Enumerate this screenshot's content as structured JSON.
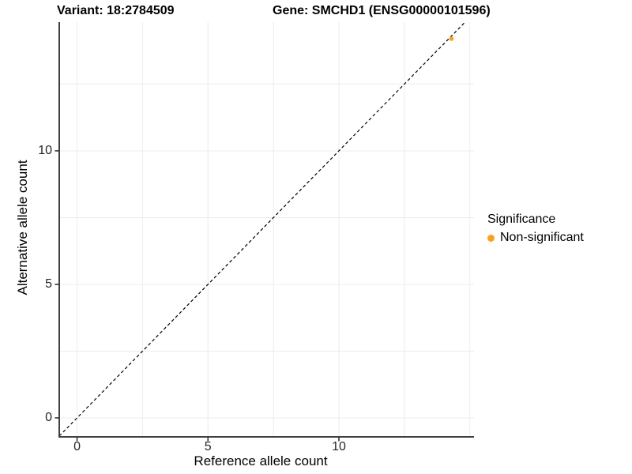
{
  "chart_data": {
    "type": "scatter",
    "title_left": "Variant: 18:2784509",
    "title_right": "Gene: SMCHD1 (ENSG00000101596)",
    "xlabel": "Reference allele count",
    "ylabel": "Alternative allele count",
    "x_ticks": [
      0,
      5,
      10
    ],
    "y_ticks": [
      0,
      5,
      10
    ],
    "xlim": [
      -0.68,
      15.16
    ],
    "ylim": [
      -0.71,
      14.82
    ],
    "grid_step": 2.5,
    "grid_on": true,
    "identity_line": {
      "slope": 1,
      "intercept": 0,
      "style": "dashed",
      "color": "#000000"
    },
    "points": [
      {
        "x": 14.3,
        "y": 14.2,
        "series": "Non-significant",
        "color": "#F9A11B"
      }
    ],
    "legend": {
      "title": "Significance",
      "position": "right",
      "entries": [
        {
          "label": "Non-significant",
          "color": "#F9A11B"
        }
      ]
    },
    "colors": {
      "background": "#FFFFFF",
      "gridline": "#ECECEC",
      "axis_line": "#3F3F3F",
      "tick_mark": "#333333",
      "tick_text": "#262626",
      "point": "#F9A11B"
    }
  }
}
